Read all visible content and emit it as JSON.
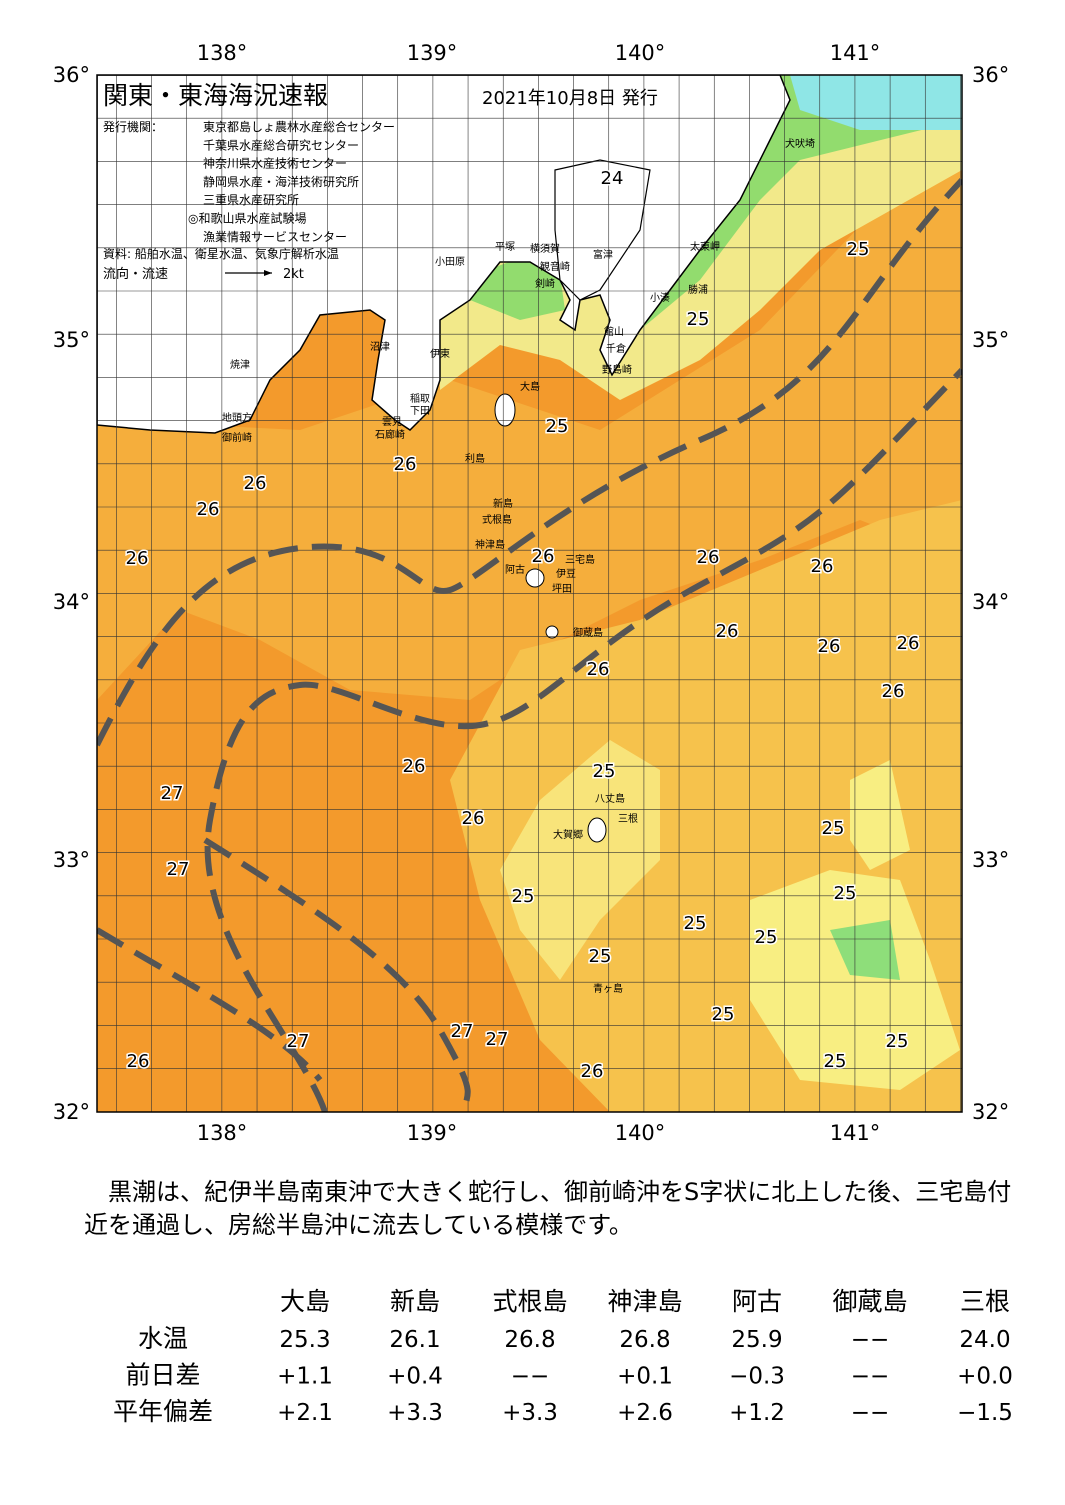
{
  "header": {
    "title": "関東・東海海況速報",
    "date": "2021年10月8日 発行",
    "issuer_label": "発行機関：",
    "issuers": [
      "東京都島しょ農林水産総合センター",
      "千葉県水産総合研究センター",
      "神奈川県水産技術センター",
      "静岡県水産・海洋技術研究所",
      "三重県水産研究所",
      "◎和歌山県水産試験場",
      "漁業情報サービスセンター"
    ],
    "source": "資料: 船舶水温、衛星水温、気象庁解析水温",
    "legend_label": "流向・流速",
    "legend_scale": "2kt"
  },
  "map": {
    "lon_labels": [
      "138°",
      "139°",
      "140°",
      "141°"
    ],
    "lat_labels": [
      "36°",
      "35°",
      "34°",
      "33°",
      "32°"
    ],
    "places": [
      "犬吠埼",
      "太東岬",
      "勝浦",
      "小湊",
      "富津",
      "館山",
      "千倉",
      "野島崎",
      "横須賀",
      "観音崎",
      "剣崎",
      "平塚",
      "小田原",
      "沼津",
      "伊東",
      "稲取",
      "下田",
      "雲見",
      "石廊崎",
      "焼津",
      "地頭方",
      "御前崎",
      "大島",
      "利島",
      "新島",
      "式根島",
      "神津島",
      "三宅島",
      "伊豆",
      "阿古",
      "坪田",
      "御蔵島",
      "八丈島",
      "三根",
      "大賀郷",
      "青ヶ島"
    ],
    "temperature_labels": [
      24,
      25,
      25,
      25,
      26,
      26,
      26,
      26,
      26,
      26,
      26,
      26,
      26,
      26,
      26,
      26,
      25,
      26,
      27,
      26,
      25,
      27,
      25,
      25,
      25,
      25,
      25,
      25,
      27,
      27,
      27,
      25,
      25,
      26,
      26
    ]
  },
  "note": "黒潮は、紀伊半島南東沖で大きく蛇行し、御前崎沖をS字状に北上した後、三宅島付近を通過し、房総半島沖に流去している模様です。",
  "table": {
    "columns": [
      "大島",
      "新島",
      "式根島",
      "神津島",
      "阿古",
      "御蔵島",
      "三根"
    ],
    "rows": [
      {
        "label": "水温",
        "cells": [
          "25.3",
          "26.1",
          "26.8",
          "26.8",
          "25.9",
          "−−",
          "24.0"
        ]
      },
      {
        "label": "前日差",
        "cells": [
          "+1.1",
          "+0.4",
          "−−",
          "+0.1",
          "−0.3",
          "−−",
          "+0.0"
        ]
      },
      {
        "label": "平年偏差",
        "cells": [
          "+2.1",
          "+3.3",
          "+3.3",
          "+2.6",
          "+1.2",
          "−−",
          "−1.5"
        ]
      }
    ]
  }
}
